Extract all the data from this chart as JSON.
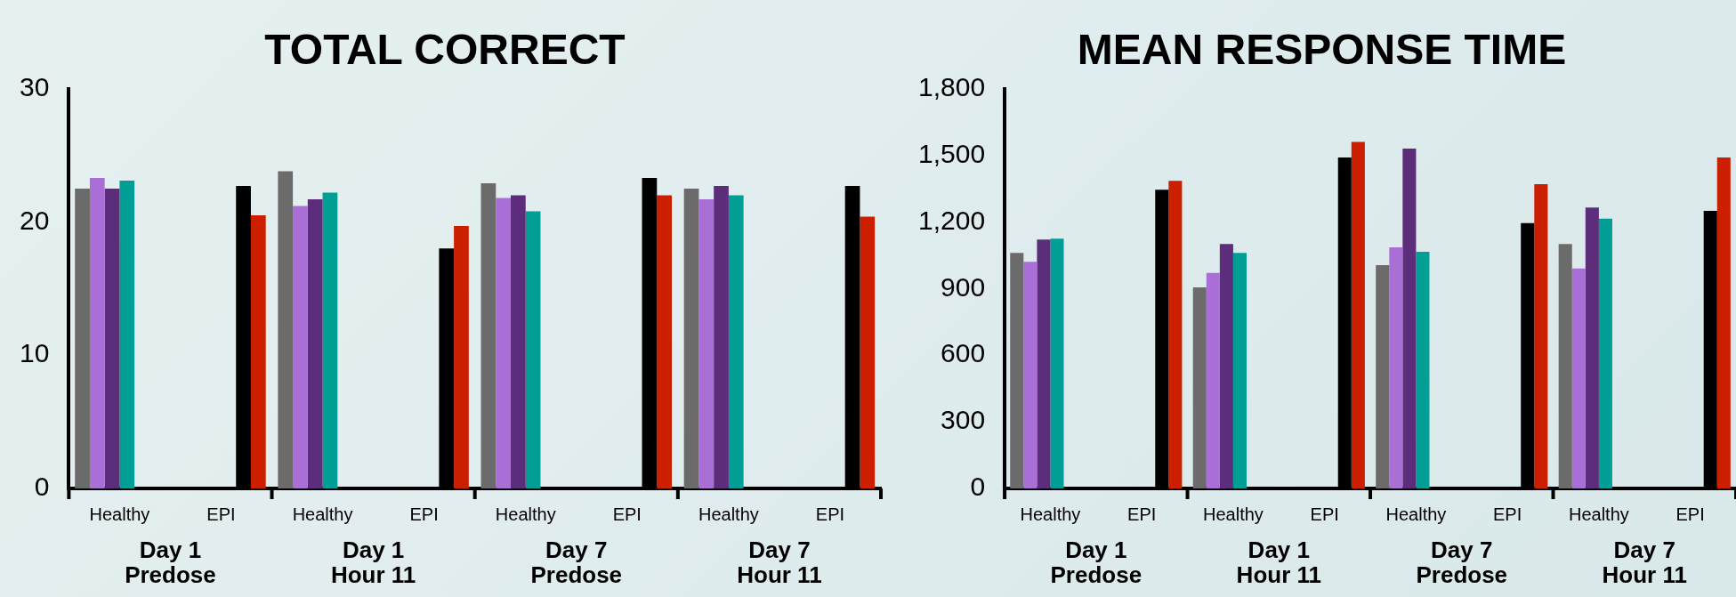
{
  "chart_data": [
    {
      "type": "bar",
      "title": "TOTAL CORRECT",
      "categories": [
        "Healthy",
        "EPI",
        "Healthy",
        "EPI",
        "Healthy",
        "EPI",
        "Healthy",
        "EPI"
      ],
      "series": [
        {
          "color": "#6b6b6b",
          "values": [
            22.5,
            null,
            23.8,
            null,
            22.9,
            null,
            22.5,
            null
          ]
        },
        {
          "color": "#a96fd6",
          "values": [
            23.3,
            null,
            21.2,
            null,
            21.8,
            null,
            21.7,
            null
          ]
        },
        {
          "color": "#5c2d7b",
          "values": [
            22.5,
            null,
            21.7,
            null,
            22.0,
            null,
            22.7,
            null
          ]
        },
        {
          "color": "#009e94",
          "values": [
            23.1,
            null,
            22.2,
            null,
            20.8,
            null,
            22.0,
            null
          ]
        },
        {
          "color": "#000000",
          "values": [
            null,
            22.7,
            null,
            18.0,
            null,
            23.3,
            null,
            22.7
          ]
        },
        {
          "color": "#cc1f00",
          "values": [
            null,
            20.5,
            null,
            19.7,
            null,
            22.0,
            null,
            20.4
          ]
        }
      ],
      "ylim": [
        0,
        30
      ],
      "yticks": [
        0,
        10,
        20,
        30
      ],
      "grid": false,
      "legend": false,
      "annotations": [
        "Day 1\nPredose",
        "Day 1\nHour 11",
        "Day 7\nPredose",
        "Day 7\nHour 11"
      ]
    },
    {
      "type": "bar",
      "title": "MEAN RESPONSE TIME",
      "categories": [
        "Healthy",
        "EPI",
        "Healthy",
        "EPI",
        "Healthy",
        "EPI",
        "Healthy",
        "EPI"
      ],
      "series": [
        {
          "color": "#6b6b6b",
          "values": [
            1060,
            null,
            905,
            null,
            1005,
            null,
            1100,
            null
          ]
        },
        {
          "color": "#a96fd6",
          "values": [
            1020,
            null,
            970,
            null,
            1085,
            null,
            990,
            null
          ]
        },
        {
          "color": "#5c2d7b",
          "values": [
            1120,
            null,
            1100,
            null,
            1530,
            null,
            1265,
            null
          ]
        },
        {
          "color": "#009e94",
          "values": [
            1125,
            null,
            1060,
            null,
            1065,
            null,
            1215,
            null
          ]
        },
        {
          "color": "#000000",
          "values": [
            null,
            1345,
            null,
            1490,
            null,
            1195,
            null,
            1250
          ]
        },
        {
          "color": "#cc1f00",
          "values": [
            null,
            1385,
            null,
            1560,
            null,
            1370,
            null,
            1490
          ]
        }
      ],
      "ylim": [
        0,
        1800
      ],
      "yticks": [
        {
          "value": 0,
          "label": "0"
        },
        {
          "value": 300,
          "label": "300"
        },
        {
          "value": 600,
          "label": "600"
        },
        {
          "value": 900,
          "label": "900"
        },
        {
          "value": 1200,
          "label": "1,200"
        },
        {
          "value": 1500,
          "label": "1,500"
        },
        {
          "value": 1800,
          "label": "1,800"
        }
      ],
      "grid": false,
      "legend": false,
      "annotations": [
        "Day 1\nPredose",
        "Day 1\nHour 11",
        "Day 7\nPredose",
        "Day 7\nHour 11"
      ]
    }
  ]
}
